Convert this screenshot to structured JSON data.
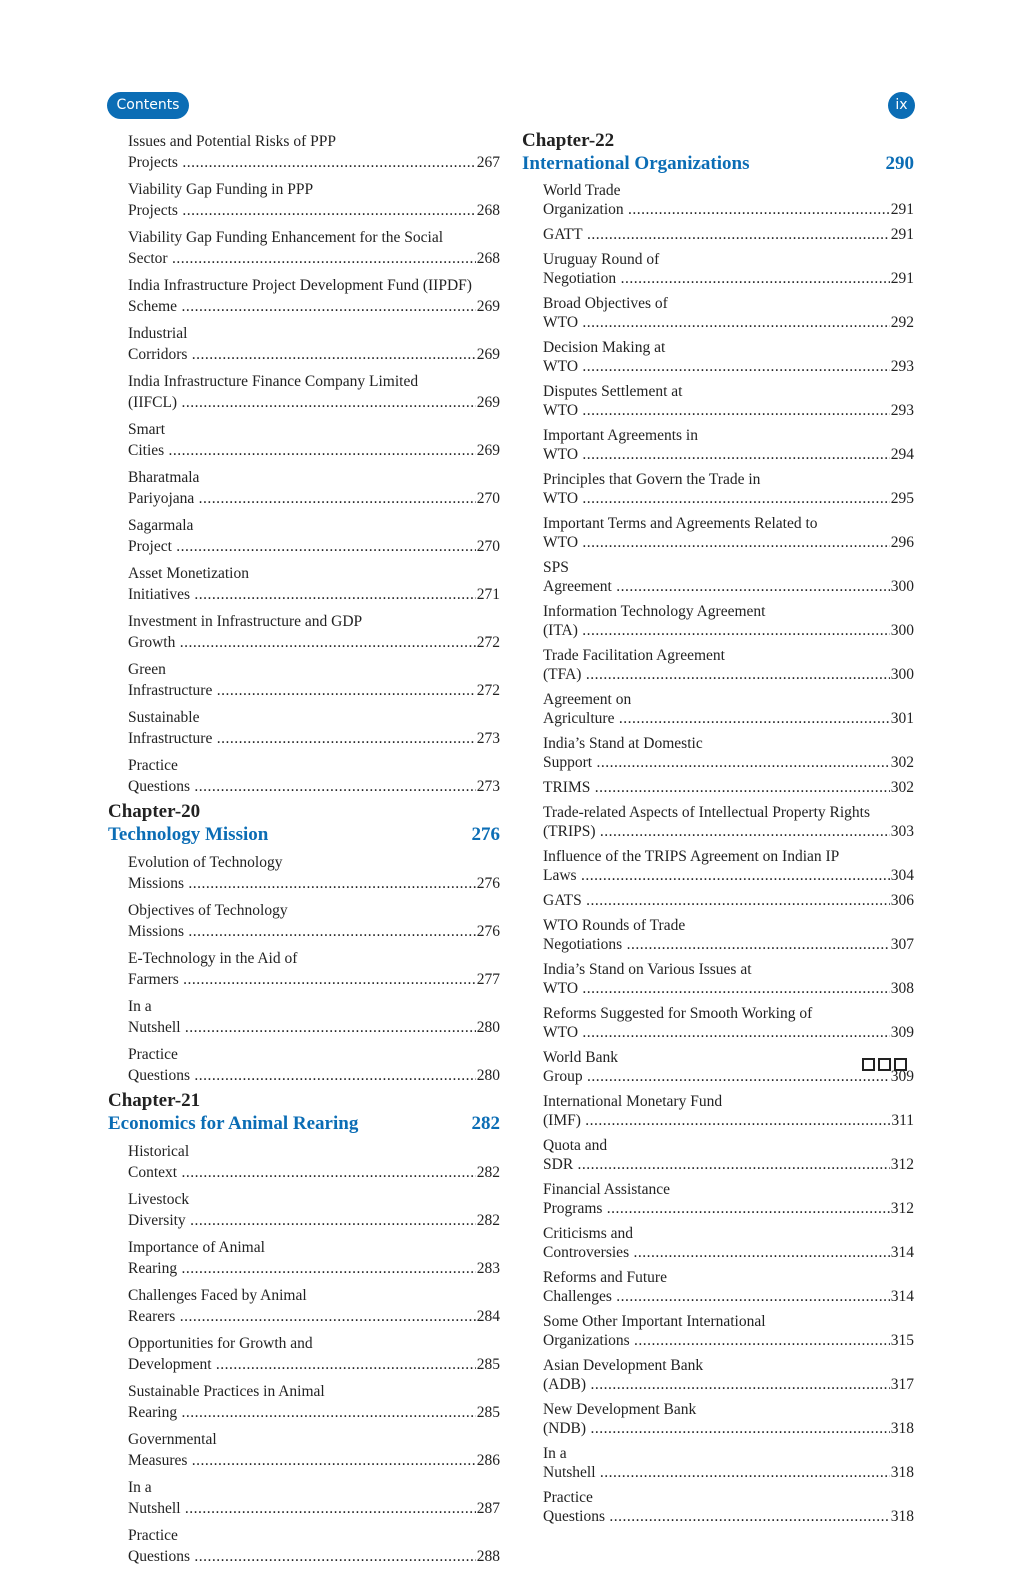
{
  "header": {
    "section_label": "Contents",
    "page_number": "ix",
    "accent_color": "#0b6db5"
  },
  "left_column": {
    "entries_top": [
      {
        "title": "Issues and Potential Risks of PPP Projects",
        "page": "267"
      },
      {
        "title": "Viability Gap Funding in PPP Projects",
        "page": "268"
      },
      {
        "title": "Viability Gap Funding Enhancement for the Social Sector",
        "page": "268"
      },
      {
        "title": "India Infrastructure Project Development Fund (IIPDF) Scheme",
        "page": "269"
      },
      {
        "title": "Industrial Corridors",
        "page": "269"
      },
      {
        "title": "India Infrastructure Finance Company Limited (IIFCL)",
        "page": "269"
      },
      {
        "title": "Smart Cities",
        "page": "269"
      },
      {
        "title": "Bharatmala Pariyojana",
        "page": "270"
      },
      {
        "title": "Sagarmala Project",
        "page": "270"
      },
      {
        "title": "Asset Monetization Initiatives",
        "page": "271"
      },
      {
        "title": "Investment in Infrastructure and GDP Growth",
        "page": "272"
      },
      {
        "title": "Green Infrastructure",
        "page": "272"
      },
      {
        "title": "Sustainable Infrastructure",
        "page": "273"
      },
      {
        "title": "Practice Questions",
        "page": "273"
      }
    ],
    "chapters": [
      {
        "chapter": "Chapter-20",
        "title": "Technology Mission",
        "page": "276",
        "entries": [
          {
            "title": "Evolution of Technology Missions",
            "page": "276"
          },
          {
            "title": "Objectives of Technology Missions",
            "page": "276"
          },
          {
            "title": "E-Technology in the Aid of Farmers",
            "page": "277"
          },
          {
            "title": "In a Nutshell",
            "page": "280"
          },
          {
            "title": "Practice Questions",
            "page": "280"
          }
        ]
      },
      {
        "chapter": "Chapter-21",
        "title": "Economics for Animal Rearing",
        "page": "282",
        "entries": [
          {
            "title": "Historical Context",
            "page": "282"
          },
          {
            "title": "Livestock Diversity",
            "page": "282"
          },
          {
            "title": "Importance of Animal Rearing",
            "page": "283"
          },
          {
            "title": "Challenges Faced by Animal Rearers",
            "page": "284"
          },
          {
            "title": "Opportunities for Growth and Development",
            "page": "285"
          },
          {
            "title": "Sustainable Practices in Animal Rearing",
            "page": "285"
          },
          {
            "title": "Governmental Measures",
            "page": "286"
          },
          {
            "title": "In a Nutshell",
            "page": "287"
          },
          {
            "title": "Practice Questions",
            "page": "288"
          }
        ]
      }
    ]
  },
  "right_column": {
    "chapter": "Chapter-22",
    "title": "International Organizations",
    "page": "290",
    "entries": [
      {
        "title": "World Trade Organization",
        "page": "291"
      },
      {
        "title": "GATT",
        "page": "291"
      },
      {
        "title": "Uruguay Round of Negotiation",
        "page": "291"
      },
      {
        "title": "Broad Objectives of WTO",
        "page": "292"
      },
      {
        "title": "Decision Making at WTO",
        "page": "293"
      },
      {
        "title": "Disputes Settlement at WTO",
        "page": "293"
      },
      {
        "title": "Important Agreements in WTO",
        "page": "294"
      },
      {
        "title": "Principles that Govern the Trade in WTO",
        "page": "295"
      },
      {
        "title": "Important Terms and Agreements Related to WTO",
        "page": "296"
      },
      {
        "title": "SPS Agreement",
        "page": "300"
      },
      {
        "title": "Information Technology Agreement (ITA)",
        "page": "300"
      },
      {
        "title": "Trade Facilitation Agreement (TFA)",
        "page": "300"
      },
      {
        "title": "Agreement on Agriculture",
        "page": "301"
      },
      {
        "title": "India’s Stand at Domestic Support",
        "page": "302"
      },
      {
        "title": "TRIMS",
        "page": "302"
      },
      {
        "title": "Trade-related Aspects of Intellectual Property Rights (TRIPS)",
        "page": "303"
      },
      {
        "title": "Influence of the TRIPS Agreement on Indian IP Laws",
        "page": "304"
      },
      {
        "title": "GATS",
        "page": "306"
      },
      {
        "title": "WTO Rounds of Trade Negotiations",
        "page": "307"
      },
      {
        "title": "India’s Stand on Various Issues at WTO",
        "page": "308"
      },
      {
        "title": "Reforms Suggested for Smooth Working of WTO",
        "page": "309"
      },
      {
        "title": "World Bank Group",
        "page": "309"
      },
      {
        "title": "International Monetary Fund (IMF)",
        "page": "311"
      },
      {
        "title": "Quota and SDR",
        "page": "312"
      },
      {
        "title": "Financial Assistance Programs",
        "page": "312"
      },
      {
        "title": "Criticisms and Controversies",
        "page": "314"
      },
      {
        "title": "Reforms and Future Challenges",
        "page": "314"
      },
      {
        "title": "Some Other Important International Organizations",
        "page": "315"
      },
      {
        "title": "Asian Development Bank (ADB)",
        "page": "317"
      },
      {
        "title": "New Development Bank (NDB)",
        "page": "318"
      },
      {
        "title": "In a Nutshell",
        "page": "318"
      },
      {
        "title": "Practice Questions",
        "page": "318"
      }
    ]
  },
  "end_mark_icon": "three-squares"
}
